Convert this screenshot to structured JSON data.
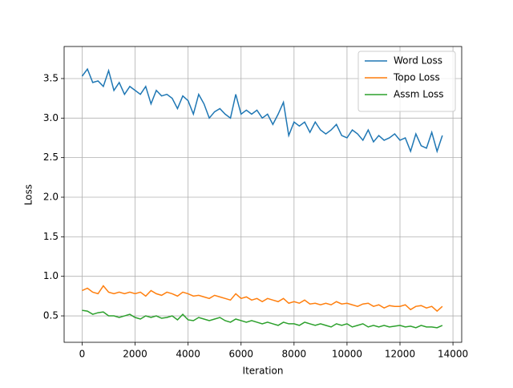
{
  "chart_data": {
    "type": "line",
    "xlabel": "Iteration",
    "ylabel": "Loss",
    "x": [
      0,
      200,
      400,
      600,
      800,
      1000,
      1200,
      1400,
      1600,
      1800,
      2000,
      2200,
      2400,
      2600,
      2800,
      3000,
      3200,
      3400,
      3600,
      3800,
      4000,
      4200,
      4400,
      4600,
      4800,
      5000,
      5200,
      5400,
      5600,
      5800,
      6000,
      6200,
      6400,
      6600,
      6800,
      7000,
      7200,
      7400,
      7600,
      7800,
      8000,
      8200,
      8400,
      8600,
      8800,
      9000,
      9200,
      9400,
      9600,
      9800,
      10000,
      10200,
      10400,
      10600,
      10800,
      11000,
      11200,
      11400,
      11600,
      11800,
      12000,
      12200,
      12400,
      12600,
      12800,
      13000,
      13200,
      13400,
      13600
    ],
    "series": [
      {
        "name": "Word Loss",
        "color": "#1f77b4",
        "values": [
          3.53,
          3.62,
          3.45,
          3.47,
          3.4,
          3.6,
          3.35,
          3.45,
          3.3,
          3.4,
          3.35,
          3.3,
          3.4,
          3.18,
          3.35,
          3.28,
          3.3,
          3.25,
          3.12,
          3.28,
          3.22,
          3.05,
          3.3,
          3.18,
          3.0,
          3.08,
          3.12,
          3.05,
          3.0,
          3.3,
          3.05,
          3.1,
          3.05,
          3.1,
          3.0,
          3.05,
          2.92,
          3.05,
          3.2,
          2.78,
          2.95,
          2.9,
          2.95,
          2.82,
          2.95,
          2.85,
          2.8,
          2.85,
          2.92,
          2.78,
          2.75,
          2.85,
          2.8,
          2.72,
          2.85,
          2.7,
          2.78,
          2.72,
          2.75,
          2.8,
          2.72,
          2.75,
          2.58,
          2.8,
          2.65,
          2.62,
          2.82,
          2.58,
          2.78
        ]
      },
      {
        "name": "Topo Loss",
        "color": "#ff7f0e",
        "values": [
          0.82,
          0.85,
          0.8,
          0.78,
          0.88,
          0.8,
          0.78,
          0.8,
          0.78,
          0.8,
          0.78,
          0.8,
          0.75,
          0.82,
          0.78,
          0.76,
          0.8,
          0.78,
          0.75,
          0.8,
          0.78,
          0.75,
          0.76,
          0.74,
          0.72,
          0.76,
          0.74,
          0.72,
          0.7,
          0.78,
          0.72,
          0.74,
          0.7,
          0.72,
          0.68,
          0.72,
          0.7,
          0.68,
          0.72,
          0.66,
          0.68,
          0.66,
          0.7,
          0.65,
          0.66,
          0.64,
          0.66,
          0.64,
          0.68,
          0.65,
          0.66,
          0.64,
          0.62,
          0.65,
          0.66,
          0.62,
          0.64,
          0.6,
          0.63,
          0.62,
          0.62,
          0.64,
          0.58,
          0.62,
          0.63,
          0.6,
          0.62,
          0.56,
          0.62
        ]
      },
      {
        "name": "Assm Loss",
        "color": "#2ca02c",
        "values": [
          0.57,
          0.56,
          0.52,
          0.54,
          0.55,
          0.5,
          0.5,
          0.48,
          0.5,
          0.52,
          0.48,
          0.46,
          0.5,
          0.48,
          0.5,
          0.47,
          0.48,
          0.5,
          0.45,
          0.52,
          0.45,
          0.44,
          0.48,
          0.46,
          0.44,
          0.46,
          0.48,
          0.44,
          0.42,
          0.46,
          0.44,
          0.42,
          0.44,
          0.42,
          0.4,
          0.42,
          0.4,
          0.38,
          0.42,
          0.4,
          0.4,
          0.38,
          0.42,
          0.4,
          0.38,
          0.4,
          0.38,
          0.36,
          0.4,
          0.38,
          0.4,
          0.36,
          0.38,
          0.4,
          0.36,
          0.38,
          0.36,
          0.38,
          0.36,
          0.37,
          0.38,
          0.36,
          0.37,
          0.35,
          0.38,
          0.36,
          0.36,
          0.35,
          0.38
        ]
      }
    ],
    "xlim": [
      -680,
      14330
    ],
    "ylim": [
      0.166,
      3.905
    ],
    "xticks": [
      0,
      2000,
      4000,
      6000,
      8000,
      10000,
      12000,
      14000
    ],
    "yticks": [
      0.5,
      {
        "value": 1.0,
        "label": "1.0"
      },
      1.5,
      {
        "value": 2.0,
        "label": "2.0"
      },
      2.5,
      {
        "value": 3.0,
        "label": "3.0"
      },
      3.5
    ],
    "grid": true,
    "legend": "upper right"
  }
}
